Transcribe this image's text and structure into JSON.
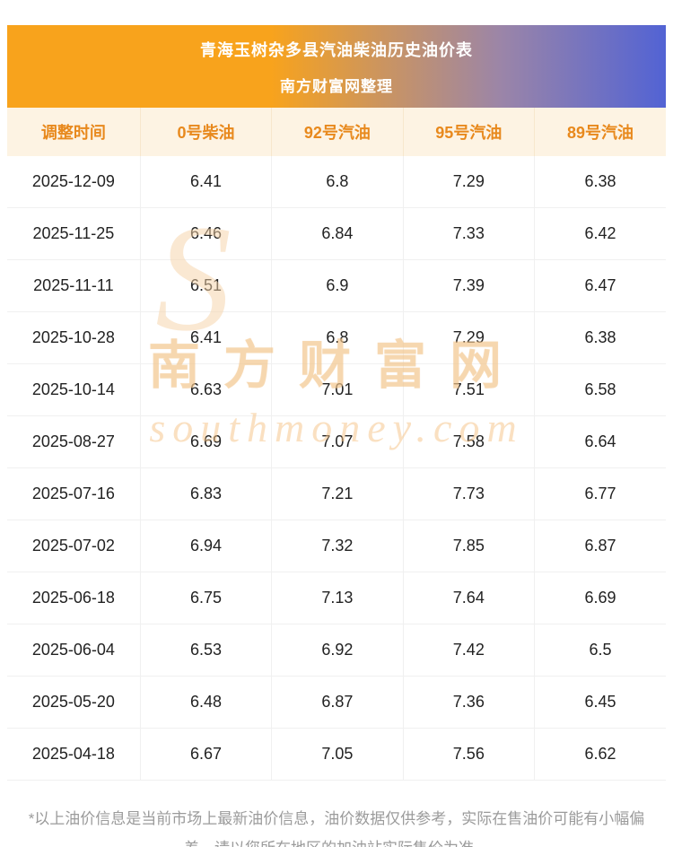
{
  "header": {
    "title_line1": "青海玉树杂多县汽油柴油历史油价表",
    "title_line2": "南方财富网整理"
  },
  "table": {
    "columns": [
      "调整时间",
      "0号柴油",
      "92号汽油",
      "95号汽油",
      "89号汽油"
    ],
    "rows": [
      {
        "date": "2025-12-09",
        "values": [
          "6.41",
          "6.8",
          "7.29",
          "6.38"
        ]
      },
      {
        "date": "2025-11-25",
        "values": [
          "6.46",
          "6.84",
          "7.33",
          "6.42"
        ]
      },
      {
        "date": "2025-11-11",
        "values": [
          "6.51",
          "6.9",
          "7.39",
          "6.47"
        ]
      },
      {
        "date": "2025-10-28",
        "values": [
          "6.41",
          "6.8",
          "7.29",
          "6.38"
        ]
      },
      {
        "date": "2025-10-14",
        "values": [
          "6.63",
          "7.01",
          "7.51",
          "6.58"
        ]
      },
      {
        "date": "2025-08-27",
        "values": [
          "6.69",
          "7.07",
          "7.58",
          "6.64"
        ]
      },
      {
        "date": "2025-07-16",
        "values": [
          "6.83",
          "7.21",
          "7.73",
          "6.77"
        ]
      },
      {
        "date": "2025-07-02",
        "values": [
          "6.94",
          "7.32",
          "7.85",
          "6.87"
        ]
      },
      {
        "date": "2025-06-18",
        "values": [
          "6.75",
          "7.13",
          "7.64",
          "6.69"
        ]
      },
      {
        "date": "2025-06-04",
        "values": [
          "6.53",
          "6.92",
          "7.42",
          "6.5"
        ]
      },
      {
        "date": "2025-05-20",
        "values": [
          "6.48",
          "6.87",
          "7.36",
          "6.45"
        ]
      },
      {
        "date": "2025-04-18",
        "values": [
          "6.67",
          "7.05",
          "7.56",
          "6.62"
        ]
      }
    ]
  },
  "watermark": {
    "cn": "南方财富网",
    "en": "southmoney.com",
    "initial": "S"
  },
  "footnote": "*以上油价信息是当前市场上最新油价信息，油价数据仅供参考，实际在售油价可能有小幅偏差，请以您所在地区的加油站实际售价为准。",
  "colors": {
    "banner_gradient_start": "#f8a31c",
    "banner_gradient_end": "#5263d4",
    "table_header_bg": "#fdf3e3",
    "table_header_text": "#e8891d",
    "cell_text": "#222222",
    "grid_line": "#f0f0f0",
    "footnote_text": "#9b9b9b",
    "watermark": "#f2c48a"
  }
}
